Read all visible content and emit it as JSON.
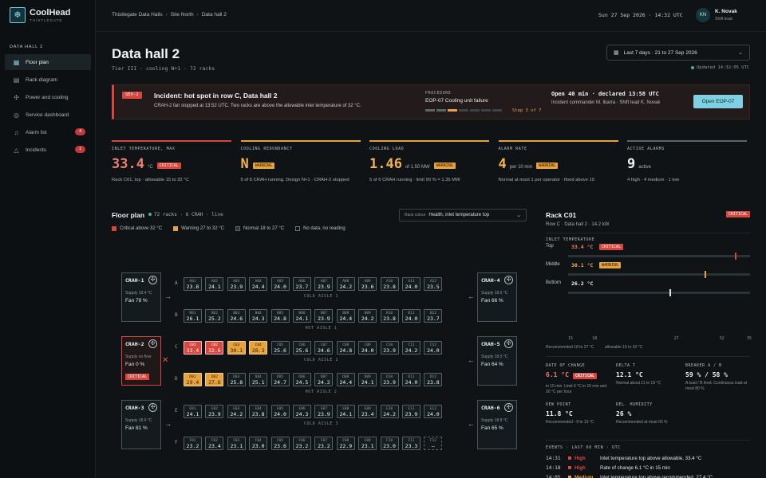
{
  "brand": {
    "name": "CoolHead",
    "sub": "THISTLEGATE"
  },
  "nav": {
    "section": "DATA HALL 2",
    "items": [
      {
        "label": "Floor plan",
        "icon": "grid-icon",
        "active": true
      },
      {
        "label": "Rack diagram",
        "icon": "rack-icon"
      },
      {
        "label": "Power and cooling",
        "icon": "fan-icon"
      },
      {
        "label": "Service dashboard",
        "icon": "service-icon"
      },
      {
        "label": "Alarm list",
        "icon": "bell-icon",
        "badge": "4"
      },
      {
        "label": "Incidents",
        "icon": "alert-icon",
        "badge": "1"
      }
    ]
  },
  "breadcrumb": [
    "Thistlegate Data Halls",
    "Site North",
    "Data hall 2"
  ],
  "clock": "Sun 27 Sep 2026 · 14:32 UTC",
  "user": {
    "initials": "KN",
    "name": "K. Novak",
    "role": "Shift lead"
  },
  "page": {
    "title": "Data hall 2",
    "subtitle": "Tier III · cooling N+1 · 72 racks",
    "daterange": "Last 7 days · 21 to 27 Sep 2026",
    "updated": "Updated 14:32:05 UTC"
  },
  "incident": {
    "sev": "SEV-2",
    "title": "Incident: hot spot in row C, Data hall 2",
    "desc": "CRAH-2 fan stopped at 13:52 UTC. Two racks are above the allowable inlet temperature of 32 °C.",
    "proc_label": "PROCEDURE",
    "proc_name": "EOP-07 Cooling unit failure",
    "step": "Step 3 of 7",
    "steps_done": 2,
    "steps_total": 7,
    "open": "Open 40 min · declared 13:58 UTC",
    "commander": "Incident commander M. Ibarra · Shift lead K. Novak",
    "button": "Open EOP-07"
  },
  "kpis": [
    {
      "label": "INLET TEMPERATURE, MAX",
      "value": "33.4",
      "unit": "°C",
      "tag": "CRITICAL",
      "tone": "crit",
      "note": "Rack C01, top · allowable 15 to 32 °C"
    },
    {
      "label": "COOLING REDUNDANCY",
      "value": "N",
      "unit": "",
      "tag": "WARNING",
      "tone": "warn",
      "note": "5 of 6 CRAH running. Design N+1 · CRAH-2 stopped"
    },
    {
      "label": "COOLING LOAD",
      "value": "1.46",
      "unit": "of 1.50 MW",
      "tag": "WARNING",
      "tone": "warn",
      "note": "5 of 6 CRAH running · limit 90 % = 1.35 MW"
    },
    {
      "label": "ALARM RATE",
      "value": "4",
      "unit": "per 10 min",
      "tag": "WARNING",
      "tone": "warn",
      "note": "Normal at most 1 per operator · flood above 10"
    },
    {
      "label": "ACTIVE ALARMS",
      "value": "9",
      "unit": "active",
      "tag": "",
      "tone": "neu",
      "note": "4 high · 4 medium · 1 low"
    }
  ],
  "floor": {
    "title": "Floor plan",
    "meta_racks": "72 racks",
    "meta_crah": "6 CRAH",
    "meta_live": "live",
    "colour_label": "Rack colour",
    "colour_value": "Health, inlet temperature top",
    "legend": [
      {
        "label": "Critical above 32 °C",
        "color": "#d9463e"
      },
      {
        "label": "Warning 27 to 32 °C",
        "color": "#e6a23c"
      },
      {
        "label": "Normal 18 to 27 °C",
        "color": "#2a3337"
      },
      {
        "label": "No data, no reading",
        "color": "#0f1315"
      }
    ],
    "aisles": [
      "COLD AISLE 1",
      "HOT AISLE 1",
      "COLD AISLE 2",
      "HOT AISLE 2",
      "COLD AISLE 3"
    ],
    "rows": [
      {
        "letter": "A",
        "racks": [
          [
            "A01",
            "23.8"
          ],
          [
            "A02",
            "24.1"
          ],
          [
            "A03",
            "23.9"
          ],
          [
            "A04",
            "24.4"
          ],
          [
            "A05",
            "24.0"
          ],
          [
            "A06",
            "23.7"
          ],
          [
            "A07",
            "23.9"
          ],
          [
            "A08",
            "24.2"
          ],
          [
            "A09",
            "23.6"
          ],
          [
            "A10",
            "23.8"
          ],
          [
            "A11",
            "24.0"
          ],
          [
            "A12",
            "23.5"
          ]
        ]
      },
      {
        "letter": "B",
        "racks": [
          [
            "B01",
            "26.1"
          ],
          [
            "B02",
            "25.2"
          ],
          [
            "B03",
            "24.6"
          ],
          [
            "B04",
            "24.3"
          ],
          [
            "B05",
            "24.8"
          ],
          [
            "B06",
            "24.1"
          ],
          [
            "B07",
            "23.9"
          ],
          [
            "B08",
            "24.4"
          ],
          [
            "B09",
            "24.2"
          ],
          [
            "B10",
            "23.8"
          ],
          [
            "B11",
            "24.0"
          ],
          [
            "B12",
            "23.7"
          ]
        ]
      },
      {
        "letter": "C",
        "racks": [
          [
            "C01",
            "33.4",
            "crit"
          ],
          [
            "C02",
            "32.6",
            "crit"
          ],
          [
            "C03",
            "30.1",
            "warn"
          ],
          [
            "C04",
            "28.3",
            "warn"
          ],
          [
            "C05",
            "25.6"
          ],
          [
            "C06",
            "25.6"
          ],
          [
            "C07",
            "24.6"
          ],
          [
            "C08",
            "24.8"
          ],
          [
            "C09",
            "24.0"
          ],
          [
            "C10",
            "23.9"
          ],
          [
            "C11",
            "24.2"
          ],
          [
            "C12",
            "24.0"
          ]
        ]
      },
      {
        "letter": "D",
        "racks": [
          [
            "D01",
            "29.4",
            "warn"
          ],
          [
            "D02",
            "27.6",
            "warn"
          ],
          [
            "D03",
            "25.8"
          ],
          [
            "D04",
            "25.1"
          ],
          [
            "D05",
            "24.7"
          ],
          [
            "D06",
            "24.5"
          ],
          [
            "D07",
            "24.2"
          ],
          [
            "D08",
            "24.4"
          ],
          [
            "D09",
            "24.1"
          ],
          [
            "D10",
            "23.9"
          ],
          [
            "D11",
            "24.0"
          ],
          [
            "D12",
            "23.8"
          ]
        ]
      },
      {
        "letter": "E",
        "racks": [
          [
            "E01",
            "24.1"
          ],
          [
            "E02",
            "23.9"
          ],
          [
            "E03",
            "24.2"
          ],
          [
            "E04",
            "23.8"
          ],
          [
            "E05",
            "24.0"
          ],
          [
            "E06",
            "24.3"
          ],
          [
            "E07",
            "23.9"
          ],
          [
            "E08",
            "24.1"
          ],
          [
            "E09",
            "23.4"
          ],
          [
            "E10",
            "24.2"
          ],
          [
            "E11",
            "23.9"
          ],
          [
            "E12",
            "24.0"
          ]
        ]
      },
      {
        "letter": "F",
        "racks": [
          [
            "F01",
            "23.2"
          ],
          [
            "F02",
            "23.4"
          ],
          [
            "F03",
            "23.1"
          ],
          [
            "F04",
            "23.0"
          ],
          [
            "F05",
            "23.6"
          ],
          [
            "F06",
            "23.2"
          ],
          [
            "F07",
            "23.2"
          ],
          [
            "F08",
            "22.9"
          ],
          [
            "F09",
            "23.1"
          ],
          [
            "F10",
            "23.0"
          ],
          [
            "F11",
            "23.3"
          ],
          [
            "F12",
            "–",
            "nodata"
          ]
        ]
      }
    ],
    "crah": [
      {
        "name": "CRAH-1",
        "supply": "Supply 18.4 °C",
        "fan": "Fan 78 %"
      },
      {
        "name": "CRAH-2",
        "supply": "Supply no flow",
        "fan": "Fan 0 %",
        "tag": "CRITICAL"
      },
      {
        "name": "CRAH-3",
        "supply": "Supply 18.9 °C",
        "fan": "Fan 81 %"
      },
      {
        "name": "CRAH-4",
        "supply": "Supply 18.6 °C",
        "fan": "Fan 66 %"
      },
      {
        "name": "CRAH-5",
        "supply": "Supply 18.5 °C",
        "fan": "Fan 64 %"
      },
      {
        "name": "CRAH-6",
        "supply": "Supply 18.8 °C",
        "fan": "Fan 65 %"
      }
    ]
  },
  "detail": {
    "title": "Rack C01",
    "tag": "CRITICAL",
    "sub": "Row C · Data hall 2 · 14.2 kW",
    "inlet_label": "INLET TEMPERATURE",
    "probes": [
      {
        "label": "Top",
        "value": "33.4 °C",
        "tag": "CRITICAL",
        "tone": "crit",
        "t": 33.4
      },
      {
        "label": "Middle",
        "value": "30.1 °C",
        "tag": "WARNING",
        "tone": "warn",
        "t": 30.1
      },
      {
        "label": "Bottom",
        "value": "26.2 °C",
        "tag": "",
        "tone": "neu",
        "t": 26.2
      }
    ],
    "axis": [
      "15",
      "18",
      "27",
      "32",
      "35"
    ],
    "axis_min": 15,
    "axis_max": 35,
    "rec_a": "Recommended 18 to 27 °C",
    "rec_b": "allowable 15 to 32 °C",
    "metrics": [
      {
        "label": "RATE OF CHANGE",
        "value": "6.1 °C",
        "tag": "CRITICAL",
        "tone": "red",
        "note": "in 15 min. Limit 5 °C in 15 min and 20 °C per hour"
      },
      {
        "label": "DELTA T",
        "value": "12.1 °C",
        "note": "Normal about 11 to 19 °C"
      },
      {
        "label": "BREAKER A / B",
        "value": "59 % / 58 %",
        "note": "A load / B feed. Continuous load at most 80 %"
      },
      {
        "label": "DEW POINT",
        "value": "11.8 °C",
        "note": "Recommended −9 to 15 °C"
      },
      {
        "label": "REL. HUMIDITY",
        "value": "26 %",
        "note": "Recommended at most 60 %"
      }
    ],
    "events_label": "EVENTS · LAST 60 MIN · UTC",
    "events": [
      {
        "time": "14:31",
        "sev": "High",
        "color": "#d9463e",
        "text": "Inlet temperature top above allowable, 33.4 °C"
      },
      {
        "time": "14:18",
        "sev": "High",
        "color": "#d9463e",
        "text": "Rate of change 6.1 °C in 15 min"
      },
      {
        "time": "14:05",
        "sev": "Medium",
        "color": "#e6a23c",
        "text": "Inlet temperature top above recommended, 27.4 °C"
      },
      {
        "time": "13:52",
        "sev": "High",
        "color": "#d9463e",
        "text": "CRAH-2 fan stopped, cold aisle 2 west"
      }
    ]
  }
}
